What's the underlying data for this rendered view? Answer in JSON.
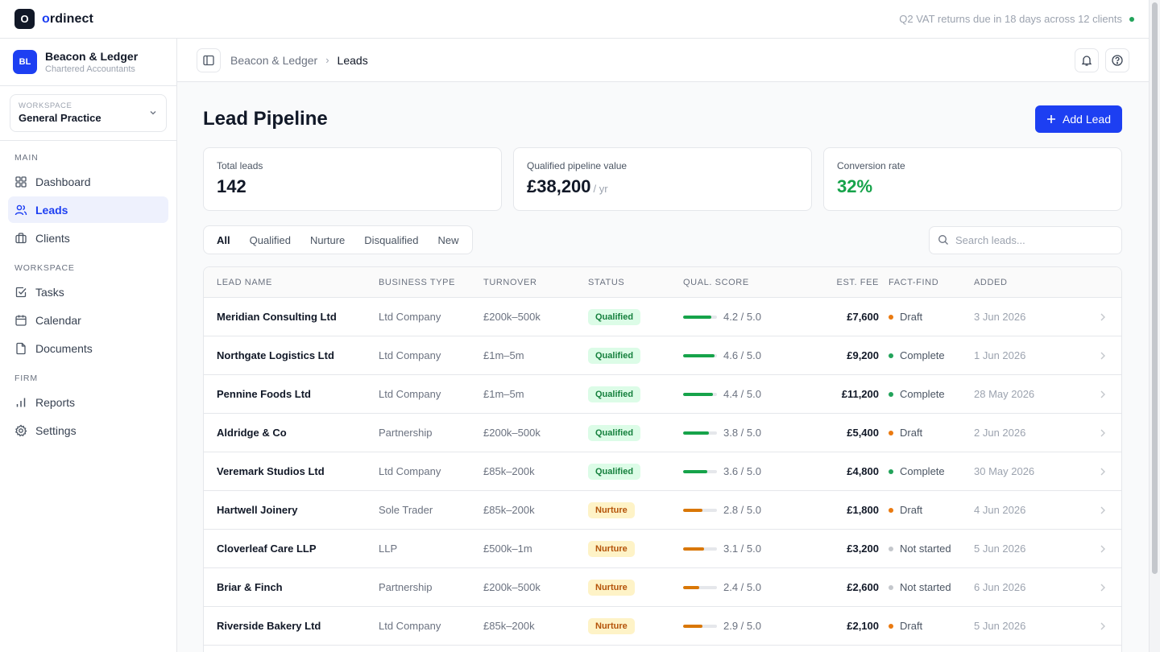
{
  "app": {
    "logo_letter": "O",
    "brand_first": "o",
    "brand_rest": "rdinect",
    "announcement": "Q2 VAT returns due in 18 days across 12 clients"
  },
  "firm": {
    "initials": "BL",
    "name": "Beacon & Ledger",
    "subtitle": "Chartered Accountants"
  },
  "workspace": {
    "label": "WORKSPACE",
    "value": "General Practice"
  },
  "nav": {
    "main_label": "MAIN",
    "workspace_label": "WORKSPACE",
    "firm_label": "FIRM",
    "items": [
      {
        "label": "Dashboard",
        "icon": "grid-icon"
      },
      {
        "label": "Leads",
        "icon": "users-icon"
      },
      {
        "label": "Clients",
        "icon": "briefcase-icon"
      },
      {
        "label": "Tasks",
        "icon": "checkbox-icon"
      },
      {
        "label": "Calendar",
        "icon": "calendar-icon"
      },
      {
        "label": "Documents",
        "icon": "document-icon"
      },
      {
        "label": "Reports",
        "icon": "bar-chart-icon"
      },
      {
        "label": "Settings",
        "icon": "gear-icon"
      }
    ]
  },
  "breadcrumb": {
    "parent": "Beacon & Ledger",
    "separator": "›",
    "current": "Leads"
  },
  "page": {
    "title": "Lead Pipeline",
    "add_button": "Add Lead"
  },
  "kpis": {
    "total_label": "Total leads",
    "total_value": "142",
    "pipeline_label": "Qualified pipeline value",
    "pipeline_value": "£38,200",
    "pipeline_unit": "/ yr",
    "conversion_label": "Conversion rate",
    "conversion_value": "32%"
  },
  "filters": {
    "tabs": [
      "All",
      "Qualified",
      "Nurture",
      "Disqualified",
      "New"
    ],
    "active": "All",
    "search_placeholder": "Search leads..."
  },
  "table": {
    "headers": {
      "name": "LEAD NAME",
      "type": "BUSINESS TYPE",
      "turnover": "TURNOVER",
      "status": "STATUS",
      "score": "QUAL. SCORE",
      "fee": "EST. FEE",
      "factfind": "FACT-FIND",
      "added": "ADDED"
    },
    "rows": [
      {
        "name": "Meridian Consulting Ltd",
        "type": "Ltd Company",
        "turnover": "£200k–500k",
        "status": "Qualified",
        "score": 4.2,
        "score_text": "4.2 / 5.0",
        "fee": "£7,600",
        "factfind": "Draft",
        "added": "3 Jun 2026"
      },
      {
        "name": "Northgate Logistics Ltd",
        "type": "Ltd Company",
        "turnover": "£1m–5m",
        "status": "Qualified",
        "score": 4.6,
        "score_text": "4.6 / 5.0",
        "fee": "£9,200",
        "factfind": "Complete",
        "added": "1 Jun 2026"
      },
      {
        "name": "Pennine Foods Ltd",
        "type": "Ltd Company",
        "turnover": "£1m–5m",
        "status": "Qualified",
        "score": 4.4,
        "score_text": "4.4 / 5.0",
        "fee": "£11,200",
        "factfind": "Complete",
        "added": "28 May 2026"
      },
      {
        "name": "Aldridge & Co",
        "type": "Partnership",
        "turnover": "£200k–500k",
        "status": "Qualified",
        "score": 3.8,
        "score_text": "3.8 / 5.0",
        "fee": "£5,400",
        "factfind": "Draft",
        "added": "2 Jun 2026"
      },
      {
        "name": "Veremark Studios Ltd",
        "type": "Ltd Company",
        "turnover": "£85k–200k",
        "status": "Qualified",
        "score": 3.6,
        "score_text": "3.6 / 5.0",
        "fee": "£4,800",
        "factfind": "Complete",
        "added": "30 May 2026"
      },
      {
        "name": "Hartwell Joinery",
        "type": "Sole Trader",
        "turnover": "£85k–200k",
        "status": "Nurture",
        "score": 2.8,
        "score_text": "2.8 / 5.0",
        "fee": "£1,800",
        "factfind": "Draft",
        "added": "4 Jun 2026"
      },
      {
        "name": "Cloverleaf Care LLP",
        "type": "LLP",
        "turnover": "£500k–1m",
        "status": "Nurture",
        "score": 3.1,
        "score_text": "3.1 / 5.0",
        "fee": "£3,200",
        "factfind": "Not started",
        "added": "5 Jun 2026"
      },
      {
        "name": "Briar & Finch",
        "type": "Partnership",
        "turnover": "£200k–500k",
        "status": "Nurture",
        "score": 2.4,
        "score_text": "2.4 / 5.0",
        "fee": "£2,600",
        "factfind": "Not started",
        "added": "6 Jun 2026"
      },
      {
        "name": "Riverside Bakery Ltd",
        "type": "Ltd Company",
        "turnover": "£85k–200k",
        "status": "Nurture",
        "score": 2.9,
        "score_text": "2.9 / 5.0",
        "fee": "£2,100",
        "factfind": "Draft",
        "added": "5 Jun 2026"
      }
    ]
  },
  "colors": {
    "accent": "#1d3ff2",
    "qualified_bar": "#16a34a",
    "nurture_bar": "#d97706",
    "draft_dot": "#ea7a10",
    "complete_dot": "#22a35a",
    "not_started_dot": "#c4c7cc"
  }
}
